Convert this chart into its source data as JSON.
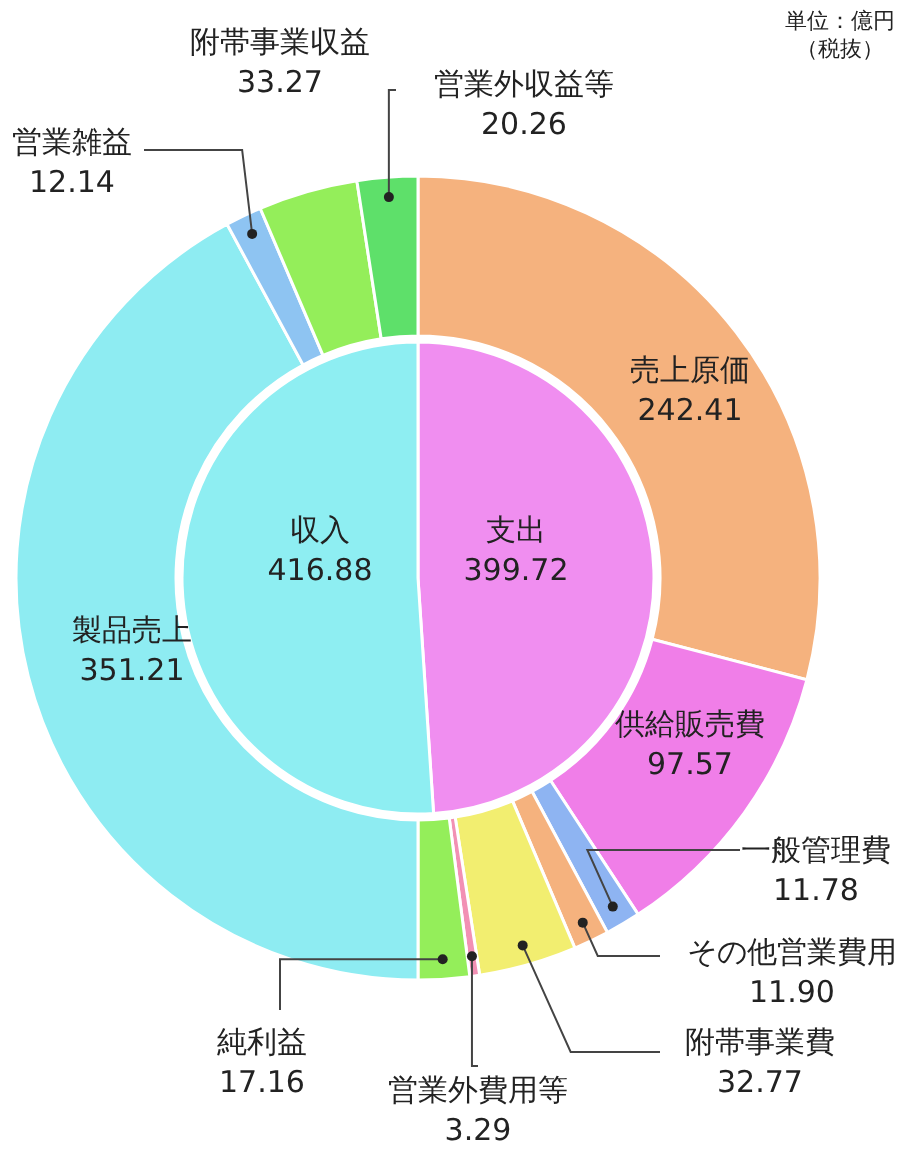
{
  "chart_data": [
    {
      "type": "pie",
      "categories": [
        "支出",
        "収入"
      ],
      "values": [
        399.72,
        416.88
      ],
      "colors": [
        "#f08ef0",
        "#8eeef2"
      ],
      "data_labels": true
    },
    {
      "type": "donut",
      "categories": [
        "売上原価",
        "供給販売費",
        "一般管理費",
        "その他営業費用",
        "附帯事業費",
        "営業外費用等",
        "純利益",
        "製品売上",
        "営業雑益",
        "附帯事業収益",
        "営業外収益等"
      ],
      "values": [
        242.41,
        97.57,
        11.78,
        11.9,
        32.77,
        3.29,
        17.16,
        351.21,
        12.14,
        33.27,
        20.26
      ],
      "colors": [
        "#f5b27e",
        "#f07ee8",
        "#8eb4f2",
        "#f5b27e",
        "#f2ee70",
        "#f290b4",
        "#94ee5a",
        "#8eecf2",
        "#8ec4f2",
        "#94ee5a",
        "#5ee06a"
      ],
      "value_labels": [
        "242.41",
        "97.57",
        "11.78",
        "11.90",
        "32.77",
        "3.29",
        "17.16",
        "351.21",
        "12.14",
        "33.27",
        "20.26"
      ],
      "annotations": [
        "単位：億円",
        "（税抜）"
      ]
    }
  ]
}
